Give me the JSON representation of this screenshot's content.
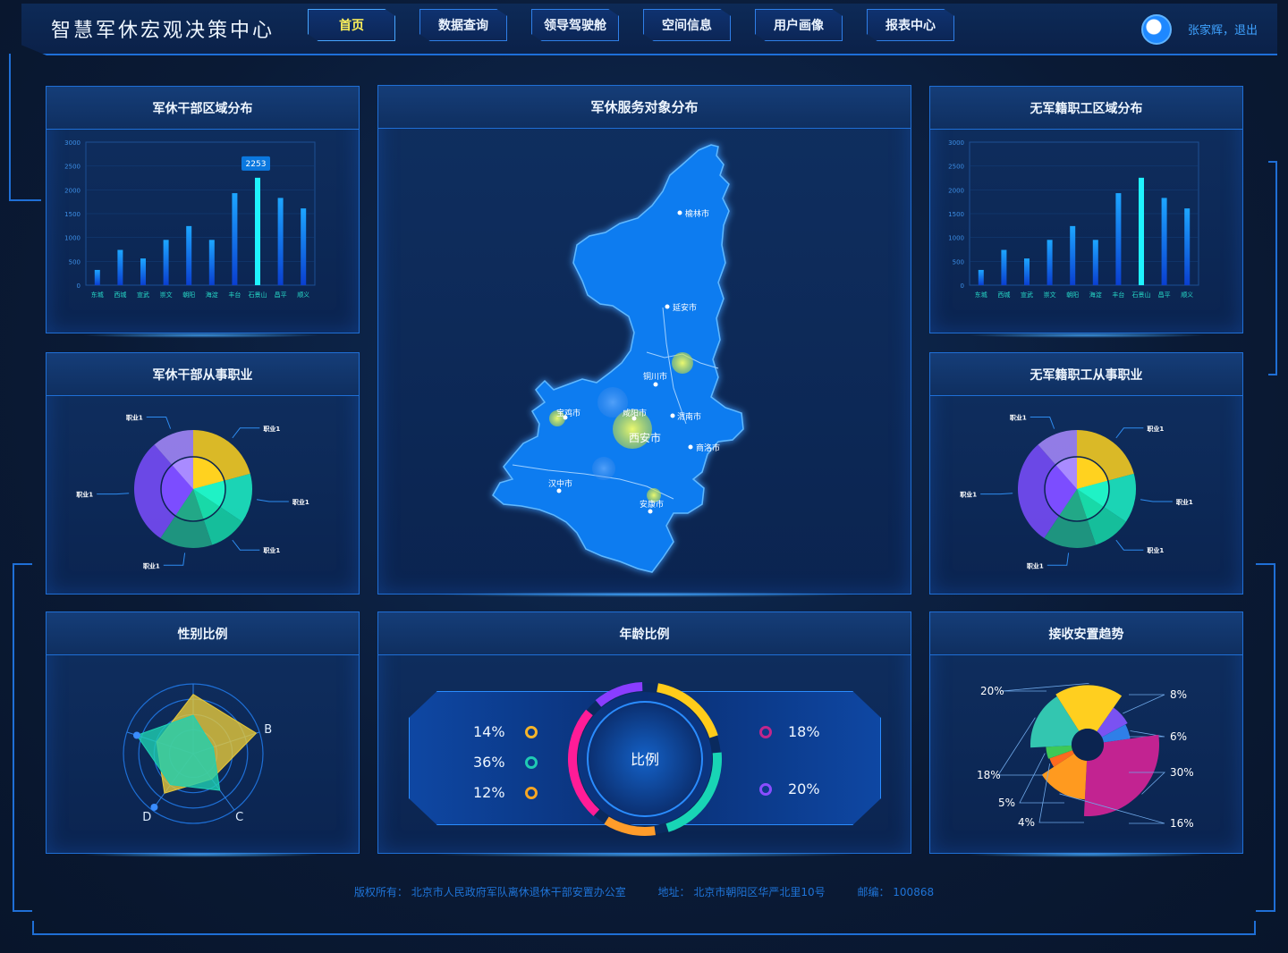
{
  "header": {
    "title": "智慧军休宏观决策中心",
    "nav": [
      "首页",
      "数据查询",
      "领导驾驶舱",
      "空间信息",
      "用户画像",
      "报表中心"
    ],
    "active_index": 0,
    "user_name": "张家辉，",
    "logout": "退出"
  },
  "colors": {
    "accent": "#1f6fd6",
    "bar_gradient_top": "#1da6ff",
    "bar_gradient_bottom": "#0a3fd0",
    "bar_highlight": "#1ff3ff",
    "map_fill": "#0f7cf0",
    "tooltip": "#0b78df"
  },
  "panels": {
    "cadre_region": "军休干部区域分布",
    "service_map": "军休服务对象分布",
    "staff_region": "无军籍职工区域分布",
    "cadre_job": "军休干部从事职业",
    "staff_job": "无军籍职工从事职业",
    "gender": "性别比例",
    "age": "年龄比例",
    "trend": "接收安置趋势"
  },
  "chart_data": [
    {
      "id": "cadre_region",
      "type": "bar",
      "categories": [
        "东城",
        "西城",
        "宣武",
        "崇文",
        "朝阳",
        "海淀",
        "丰台",
        "石景山",
        "昌平",
        "顺义"
      ],
      "values": [
        320,
        740,
        560,
        950,
        1240,
        950,
        1930,
        2253,
        1830,
        1610
      ],
      "highlight_index": 7,
      "tooltip_value": "2253",
      "ylim": [
        0,
        3000
      ],
      "yticks": [
        "3000",
        "2500",
        "2000",
        "1500",
        "1000",
        "500",
        "0"
      ]
    },
    {
      "id": "staff_region",
      "type": "bar",
      "categories": [
        "东城",
        "西城",
        "宣武",
        "崇文",
        "朝阳",
        "海淀",
        "丰台",
        "石景山",
        "昌平",
        "顺义"
      ],
      "values": [
        320,
        740,
        560,
        950,
        1240,
        950,
        1930,
        2253,
        1830,
        1610
      ],
      "highlight_index": 7,
      "ylim": [
        0,
        3000
      ],
      "yticks": [
        "3000",
        "2500",
        "2000",
        "1500",
        "1000",
        "500",
        "0"
      ]
    },
    {
      "id": "cadre_job",
      "type": "pie",
      "labels": [
        "职业1",
        "职业1",
        "职业1",
        "职业1",
        "职业1",
        "职业1"
      ],
      "values": [
        20,
        13,
        10,
        14,
        28,
        11
      ],
      "colors": [
        "#ffd21f",
        "#1ff2c6",
        "#18d9a8",
        "#22a887",
        "#7c4dff",
        "#a98bff"
      ]
    },
    {
      "id": "staff_job",
      "type": "pie",
      "labels": [
        "职业1",
        "职业1",
        "职业1",
        "职业1",
        "职业1",
        "职业1"
      ],
      "values": [
        20,
        13,
        10,
        14,
        28,
        11
      ],
      "colors": [
        "#ffd21f",
        "#1ff2c6",
        "#18d9a8",
        "#22a887",
        "#7c4dff",
        "#a98bff"
      ]
    },
    {
      "id": "gender",
      "type": "radar",
      "axes": [
        "",
        "B",
        "C",
        "D",
        ""
      ],
      "series": [
        {
          "values": [
            0.85,
            0.95,
            0.45,
            0.7,
            0.55
          ],
          "color": "#e7c93a"
        },
        {
          "values": [
            0.55,
            0.3,
            0.65,
            0.55,
            0.85
          ],
          "color": "#1fd0b2"
        }
      ]
    },
    {
      "id": "age",
      "type": "pie",
      "left_values": [
        "14%",
        "36%",
        "12%"
      ],
      "left_colors": [
        "#f6b52a",
        "#1fcbb3",
        "#f6a623"
      ],
      "right_values": [
        "18%",
        "20%"
      ],
      "right_colors": [
        "#c2268b",
        "#8a4dff"
      ],
      "center_label": "比例",
      "ring_colors": [
        "#ffcc1a",
        "#18d5b5",
        "#ff9c2a",
        "#ff1c97",
        "#8a3dff"
      ]
    },
    {
      "id": "trend",
      "type": "pie",
      "labels": [
        "20%",
        "8%",
        "6%",
        "30%",
        "16%",
        "4%",
        "5%",
        "18%"
      ],
      "values": [
        20,
        8,
        6,
        30,
        16,
        4,
        5,
        18
      ],
      "colors": [
        "#ffcf1f",
        "#7a52f2",
        "#2f7fe8",
        "#c22391",
        "#ff9a1f",
        "#ff6a1f",
        "#3ec957",
        "#33c6b0"
      ]
    }
  ],
  "map": {
    "cities": [
      "榆林市",
      "延安市",
      "铜川市",
      "宝鸡市",
      "咸阳市",
      "西安市",
      "渭南市",
      "商洛市",
      "汉中市",
      "安康市"
    ]
  },
  "footer": {
    "copyright": "版权所有：  北京市人民政府军队离休退休干部安置办公室",
    "address": "地址：  北京市朝阳区华严北里10号",
    "postcode": "邮编：  100868"
  }
}
